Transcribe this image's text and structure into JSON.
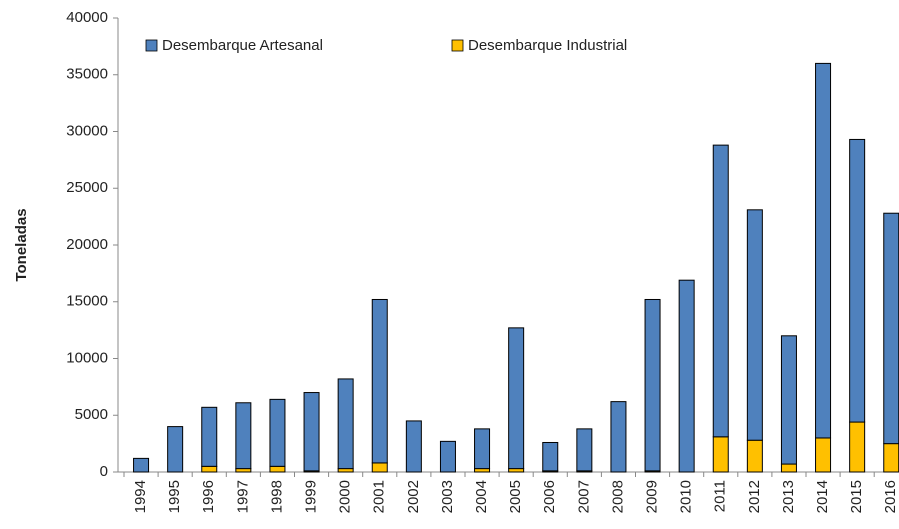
{
  "chart_data": {
    "type": "stacked_bar",
    "y_label": "Toneladas",
    "categories": [
      "1994",
      "1995",
      "1996",
      "1997",
      "1998",
      "1999",
      "2000",
      "2001",
      "2002",
      "2003",
      "2004",
      "2005",
      "2006",
      "2007",
      "2008",
      "2009",
      "2010",
      "2011",
      "2012",
      "2013",
      "2014",
      "2015",
      "2016"
    ],
    "series": [
      {
        "name": "Desembarque Artesanal",
        "color": "#4f81bd",
        "values": [
          1200,
          4000,
          5200,
          5800,
          5900,
          6900,
          7900,
          14400,
          4500,
          2700,
          3500,
          12400,
          2500,
          3700,
          6200,
          15100,
          16900,
          25700,
          20300,
          11300,
          33000,
          24900,
          20300
        ]
      },
      {
        "name": "Desembarque Industrial",
        "color": "#ffc000",
        "values": [
          0,
          0,
          500,
          300,
          500,
          100,
          300,
          800,
          0,
          0,
          300,
          300,
          100,
          100,
          0,
          100,
          0,
          3100,
          2800,
          700,
          3000,
          4400,
          2500
        ]
      }
    ],
    "ylim": [
      0,
      40000
    ],
    "yticks": [
      0,
      5000,
      10000,
      15000,
      20000,
      25000,
      30000,
      35000,
      40000
    ]
  }
}
